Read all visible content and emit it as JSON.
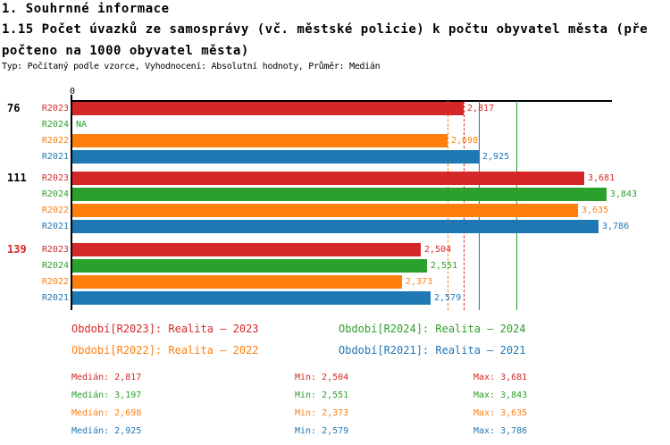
{
  "header": {
    "title": "1. Souhrnné informace",
    "subtitle_line1": "1.15 Počet úvazků ze samosprávy (vč. městské policie) k počtu obyvatel města (pře",
    "subtitle_line2": "počteno na 1000 obyvatel města)",
    "meta": "Typ: Počítaný podle vzorce, Vyhodnocení: Absolutní hodnoty, Průměr: Medián"
  },
  "colors": {
    "R2023": "#d62728",
    "R2024": "#2ca02c",
    "R2022": "#ff7f0e",
    "R2021": "#1f77b4",
    "highlight": "#d62728",
    "axis": "#000000"
  },
  "chart_data": {
    "type": "bar",
    "orientation": "horizontal",
    "title": "1.15 Počet úvazků ze samosprávy (vč. městské policie) k počtu obyvatel města (přepočteno na 1000 obyvatel města)",
    "xlabel": "",
    "ylabel": "",
    "xlim": [
      0,
      3.88
    ],
    "x_ticks": [
      "0"
    ],
    "grid": false,
    "groups": [
      {
        "label": "76",
        "highlight": false,
        "bars": [
          {
            "series": "R2023",
            "value": 2.817,
            "label": "2,817"
          },
          {
            "series": "R2024",
            "value": null,
            "label": "NA"
          },
          {
            "series": "R2022",
            "value": 2.698,
            "label": "2,698"
          },
          {
            "series": "R2021",
            "value": 2.925,
            "label": "2,925"
          }
        ]
      },
      {
        "label": "111",
        "highlight": false,
        "bars": [
          {
            "series": "R2023",
            "value": 3.681,
            "label": "3,681"
          },
          {
            "series": "R2024",
            "value": 3.843,
            "label": "3,843"
          },
          {
            "series": "R2022",
            "value": 3.635,
            "label": "3,635"
          },
          {
            "series": "R2021",
            "value": 3.786,
            "label": "3,786"
          }
        ]
      },
      {
        "label": "139",
        "highlight": true,
        "bars": [
          {
            "series": "R2023",
            "value": 2.504,
            "label": "2,504"
          },
          {
            "series": "R2024",
            "value": 2.551,
            "label": "2,551"
          },
          {
            "series": "R2022",
            "value": 2.373,
            "label": "2,373"
          },
          {
            "series": "R2021",
            "value": 2.579,
            "label": "2,579"
          }
        ]
      }
    ],
    "median_lines": [
      {
        "series": "R2022",
        "value": 2.698,
        "style": "dashed"
      },
      {
        "series": "R2023",
        "value": 2.817,
        "style": "dashed"
      },
      {
        "series": "R2021",
        "value": 2.925,
        "style": "solid"
      },
      {
        "series": "R2024",
        "value": 3.197,
        "style": "solid"
      }
    ],
    "series_stats": [
      {
        "series": "R2023",
        "median": 2.817,
        "min": 2.504,
        "max": 3.681
      },
      {
        "series": "R2024",
        "median": 3.197,
        "min": 2.551,
        "max": 3.843
      },
      {
        "series": "R2022",
        "median": 2.698,
        "min": 2.373,
        "max": 3.635
      },
      {
        "series": "R2021",
        "median": 2.925,
        "min": 2.579,
        "max": 3.786
      }
    ]
  },
  "legend": [
    {
      "key": "R2023",
      "label": "Období[R2023]: Realita – 2023"
    },
    {
      "key": "R2024",
      "label": "Období[R2024]: Realita – 2024"
    },
    {
      "key": "R2022",
      "label": "Období[R2022]: Realita – 2022"
    },
    {
      "key": "R2021",
      "label": "Období[R2021]: Realita – 2021"
    }
  ],
  "stats": [
    {
      "key": "R2023",
      "median": "Medián: 2,817",
      "min": "Min: 2,504",
      "max": "Max: 3,681"
    },
    {
      "key": "R2024",
      "median": "Medián: 3,197",
      "min": "Min: 2,551",
      "max": "Max: 3,843"
    },
    {
      "key": "R2022",
      "median": "Medián: 2,698",
      "min": "Min: 2,373",
      "max": "Max: 3,635"
    },
    {
      "key": "R2021",
      "median": "Medián: 2,925",
      "min": "Min: 2,579",
      "max": "Max: 3,786"
    }
  ]
}
